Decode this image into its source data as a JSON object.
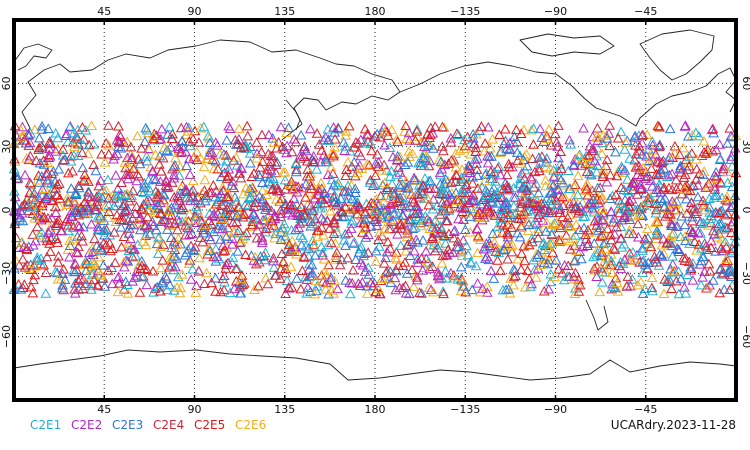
{
  "map": {
    "lon_ticks_top": [
      "45",
      "90",
      "135",
      "180",
      "−135",
      "−90",
      "−45"
    ],
    "lon_ticks_bottom": [
      "45",
      "90",
      "135",
      "180",
      "−135",
      "−90",
      "−45"
    ],
    "lat_ticks": [
      "60",
      "30",
      "0",
      "−30",
      "−60"
    ],
    "lat_ticks_right": [
      "60",
      "30",
      "0",
      "−30",
      "−60"
    ],
    "lon_range": [
      0,
      360
    ],
    "lat_range": [
      -90,
      90
    ],
    "grid": "dotted",
    "observation_lat_band": [
      -40,
      40
    ],
    "marker": "triangle-outline"
  },
  "legend": [
    {
      "label": "C2E1",
      "color": "#1fb3d6"
    },
    {
      "label": "C2E2",
      "color": "#b428c8"
    },
    {
      "label": "C2E3",
      "color": "#2a74d8"
    },
    {
      "label": "C2E4",
      "color": "#c8283c"
    },
    {
      "label": "C2E5",
      "color": "#e01818"
    },
    {
      "label": "C2E6",
      "color": "#f5ae1a"
    }
  ],
  "run_label": "UCARdry.2023-11-28"
}
